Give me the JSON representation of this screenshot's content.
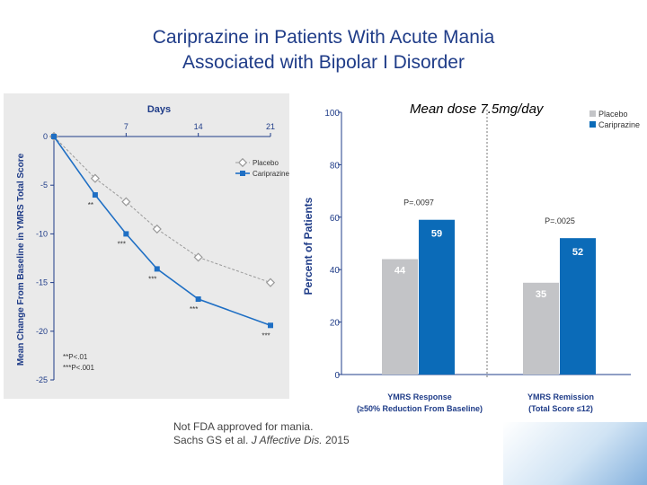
{
  "title": {
    "line1": "Cariprazine in Patients With Acute Mania",
    "line2": "Associated with Bipolar I Disorder"
  },
  "dose_label": "Mean dose 7.5mg/day",
  "footnote": {
    "line1": "Not FDA approved for mania.",
    "line2_prefix": "Sachs GS et al. ",
    "journal": "J Affective Dis.",
    "year": " 2015"
  },
  "colors": {
    "title": "#1f3c88",
    "placebo_line": "#9a9a9a",
    "cariprazine_line": "#1f6fc4",
    "placebo_bar": "#c3c4c7",
    "cariprazine_bar": "#0b6bb8",
    "axis_text": "#1f3c88"
  },
  "chart_data": [
    {
      "type": "line",
      "xlabel": "Days",
      "ylabel": "Mean Change From Baseline in YMRS Total Score",
      "x_ticks": [
        "7",
        "14",
        "21"
      ],
      "y_ticks": [
        "0",
        "-5",
        "-10",
        "-15",
        "-20",
        "-25"
      ],
      "xlim": [
        0,
        21
      ],
      "ylim": [
        -25,
        0
      ],
      "x": [
        0,
        4,
        7,
        10,
        14,
        21
      ],
      "series": [
        {
          "name": "Placebo",
          "values": [
            0,
            -4.3,
            -6.7,
            -9.5,
            -12.4,
            -15.0
          ]
        },
        {
          "name": "Cariprazine",
          "values": [
            0,
            -6.0,
            -10.0,
            -13.6,
            -16.7,
            -19.4
          ]
        }
      ],
      "significance_labels": [
        "**",
        "***",
        "***",
        "***",
        "***"
      ],
      "significance_x": [
        4,
        7,
        10,
        14,
        21
      ],
      "footnotes": [
        "**P<.01",
        "***P<.001"
      ],
      "legend": "top-right",
      "grid": false
    },
    {
      "type": "bar",
      "ylabel": "Percent of Patients",
      "y_ticks": [
        "0",
        "20",
        "40",
        "60",
        "80",
        "100"
      ],
      "ylim": [
        0,
        100
      ],
      "categories": [
        {
          "line1": "YMRS Response",
          "line2": "(≥50% Reduction From Baseline)"
        },
        {
          "line1": "YMRS Remission",
          "line2": "(Total Score ≤12)"
        }
      ],
      "series": [
        {
          "name": "Placebo",
          "values": [
            44,
            35
          ]
        },
        {
          "name": "Cariprazine",
          "values": [
            59,
            52
          ]
        }
      ],
      "p_values": [
        "P=.0097",
        "P=.0025"
      ],
      "legend": "top-right",
      "grid": false
    }
  ]
}
